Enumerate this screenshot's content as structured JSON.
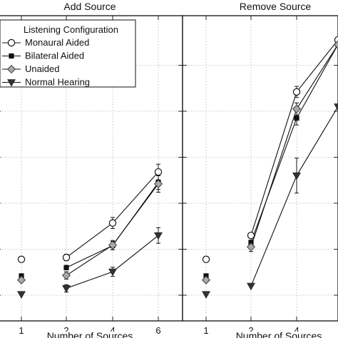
{
  "chart_data": [
    {
      "type": "line",
      "title": "Add Source",
      "xlabel": "Number of Sources",
      "ylabel": "",
      "x_ticks": [
        "1",
        "2",
        "4",
        "6"
      ],
      "grid": true,
      "legend": {
        "title": "Listening Configuration",
        "placement": "top-left",
        "entries": [
          "Monaural Aided",
          "Bilateral Aided",
          "Unaided",
          "Normal Hearing"
        ]
      },
      "series": [
        {
          "name": "Monaural Aided",
          "marker": "circle-open",
          "x": [
            1,
            2,
            4,
            6
          ],
          "y": [
            0.78,
            0.82,
            1.57,
            2.68
          ],
          "err": [
            0,
            0.07,
            0.12,
            0.17
          ],
          "connected_from": 2
        },
        {
          "name": "Bilateral Aided",
          "marker": "square-filled",
          "x": [
            1,
            2,
            4,
            6
          ],
          "y": [
            0.42,
            0.6,
            1.08,
            2.45
          ],
          "err": [
            0,
            0.05,
            0.09,
            0.15
          ],
          "connected_from": 2
        },
        {
          "name": "Unaided",
          "marker": "diamond-gray",
          "x": [
            1,
            2,
            4,
            6
          ],
          "y": [
            0.33,
            0.43,
            1.09,
            2.42
          ],
          "err": [
            0,
            0.08,
            0.1,
            0.18
          ],
          "connected_from": 2
        },
        {
          "name": "Normal Hearing",
          "marker": "triangle-down-filled",
          "x": [
            1,
            2,
            4,
            6
          ],
          "y": [
            0.02,
            0.15,
            0.51,
            1.3
          ],
          "err": [
            0,
            0.08,
            0.1,
            0.17
          ],
          "connected_from": 2
        }
      ]
    },
    {
      "type": "line",
      "title": "Remove Source",
      "xlabel": "Number of Sources",
      "ylabel": "",
      "x_ticks": [
        "1",
        "2",
        "4"
      ],
      "grid": true,
      "series": [
        {
          "name": "Monaural Aided",
          "marker": "circle-open",
          "x": [
            1,
            2,
            4,
            6
          ],
          "y": [
            0.78,
            1.3,
            4.42,
            5.55
          ],
          "err": [
            0,
            0.05,
            0.12,
            0
          ],
          "connected_from": 2
        },
        {
          "name": "Bilateral Aided",
          "marker": "square-filled",
          "x": [
            1,
            2,
            4,
            6
          ],
          "y": [
            0.42,
            1.15,
            3.85,
            5.45
          ],
          "err": [
            0,
            0.04,
            0.15,
            0
          ],
          "connected_from": 2
        },
        {
          "name": "Unaided",
          "marker": "diamond-gray",
          "x": [
            1,
            2,
            4,
            6
          ],
          "y": [
            0.33,
            1.05,
            4.05,
            5.45
          ],
          "err": [
            0,
            0.1,
            0.13,
            0
          ],
          "connected_from": 2
        },
        {
          "name": "Normal Hearing",
          "marker": "triangle-down-filled",
          "x": [
            1,
            2,
            4,
            6
          ],
          "y": [
            0.02,
            0.2,
            2.6,
            4.1
          ],
          "err": [
            0,
            0,
            0.38,
            0
          ],
          "connected_from": 2
        }
      ]
    }
  ]
}
